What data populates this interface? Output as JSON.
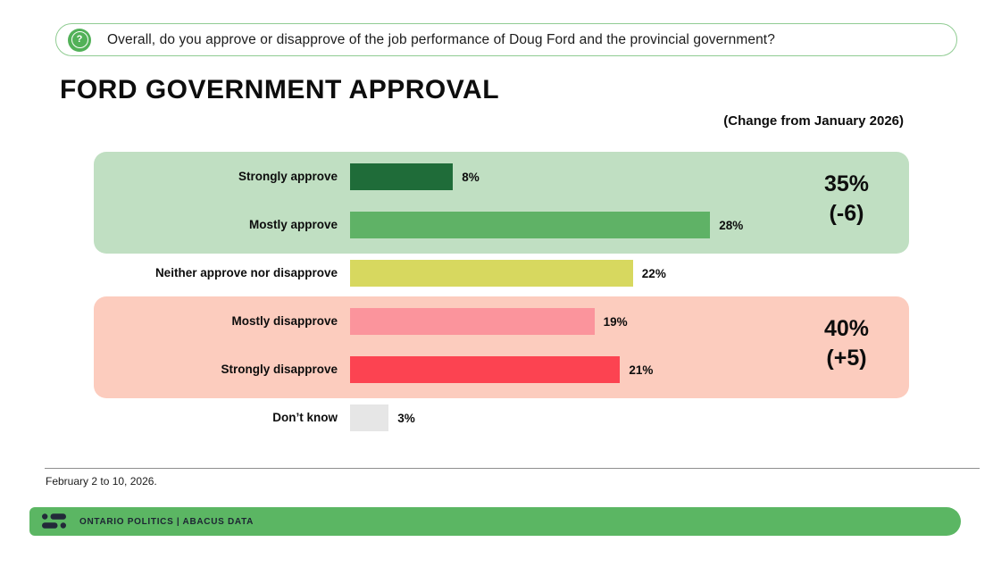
{
  "question": {
    "icon": "question-mark-icon",
    "text": "Overall, do you approve or disapprove of the job performance of Doug Ford and the provincial government?",
    "border_color": "#90cc92",
    "icon_color": "#52b158"
  },
  "header": {
    "title": "FORD GOVERNMENT APPROVAL",
    "change_note": "(Change from January 2026)"
  },
  "chart_data": {
    "type": "bar",
    "orientation": "horizontal",
    "title": "FORD GOVERNMENT APPROVAL",
    "categories": [
      "Strongly approve",
      "Mostly approve",
      "Neither approve nor disapprove",
      "Mostly disapprove",
      "Strongly disapprove",
      "Don’t know"
    ],
    "values": [
      8,
      28,
      22,
      19,
      21,
      3
    ],
    "value_labels": [
      "8%",
      "28%",
      "22%",
      "19%",
      "21%",
      "3%"
    ],
    "bar_colors": [
      "#1f6c39",
      "#5fb266",
      "#d7d85f",
      "#fb949c",
      "#fc4351",
      "#e6e6e6"
    ],
    "xlim": [
      0,
      100
    ],
    "grid": false,
    "legend": false,
    "groups": [
      {
        "name": "approve",
        "rows": [
          0,
          1
        ],
        "total": "35%",
        "change": "(-6)",
        "bg_color": "#c0dfc2"
      },
      {
        "name": "disapprove",
        "rows": [
          3,
          4
        ],
        "total": "40%",
        "change": "(+5)",
        "bg_color": "#fcccbe"
      }
    ]
  },
  "footnote": "February 2 to 10, 2026.",
  "footer": {
    "brand": "ONTARIO POLITICS | ABACUS DATA",
    "bar_color": "#5bb663",
    "logo_color": "#232939",
    "logo": "abacus-data-logo"
  }
}
